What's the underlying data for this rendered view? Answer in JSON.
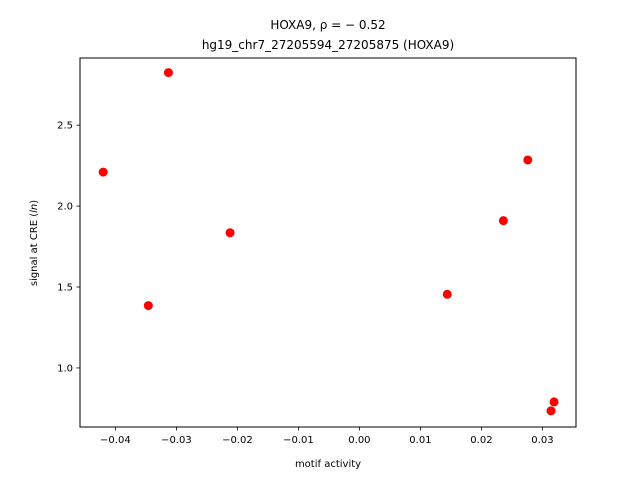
{
  "chart_data": {
    "type": "scatter",
    "title_line1": "HOXA9, ρ = − 0.52",
    "title_line2": "hg19_chr7_27205594_27205875 (HOXA9)",
    "xlabel": "motif activity",
    "ylabel": "signal at CRE (ln)",
    "xlim": [
      -0.0458,
      0.0355
    ],
    "ylim": [
      0.635,
      2.915
    ],
    "xticks": [
      -0.04,
      -0.03,
      -0.02,
      -0.01,
      0.0,
      0.01,
      0.02,
      0.03
    ],
    "xtick_labels": [
      "−0.04",
      "−0.03",
      "−0.02",
      "−0.01",
      "0.00",
      "0.01",
      "0.02",
      "0.03"
    ],
    "yticks": [
      1.0,
      1.5,
      2.0,
      2.5
    ],
    "ytick_labels": [
      "1.0",
      "1.5",
      "2.0",
      "2.5"
    ],
    "grid": false,
    "marker_color": "#ff0000",
    "points": [
      {
        "x": -0.042,
        "y": 2.21
      },
      {
        "x": -0.0346,
        "y": 1.385
      },
      {
        "x": -0.0313,
        "y": 2.825
      },
      {
        "x": -0.0212,
        "y": 1.835
      },
      {
        "x": 0.0144,
        "y": 1.455
      },
      {
        "x": 0.0236,
        "y": 1.91
      },
      {
        "x": 0.0276,
        "y": 2.285
      },
      {
        "x": 0.0314,
        "y": 0.735
      },
      {
        "x": 0.0319,
        "y": 0.79
      }
    ]
  }
}
